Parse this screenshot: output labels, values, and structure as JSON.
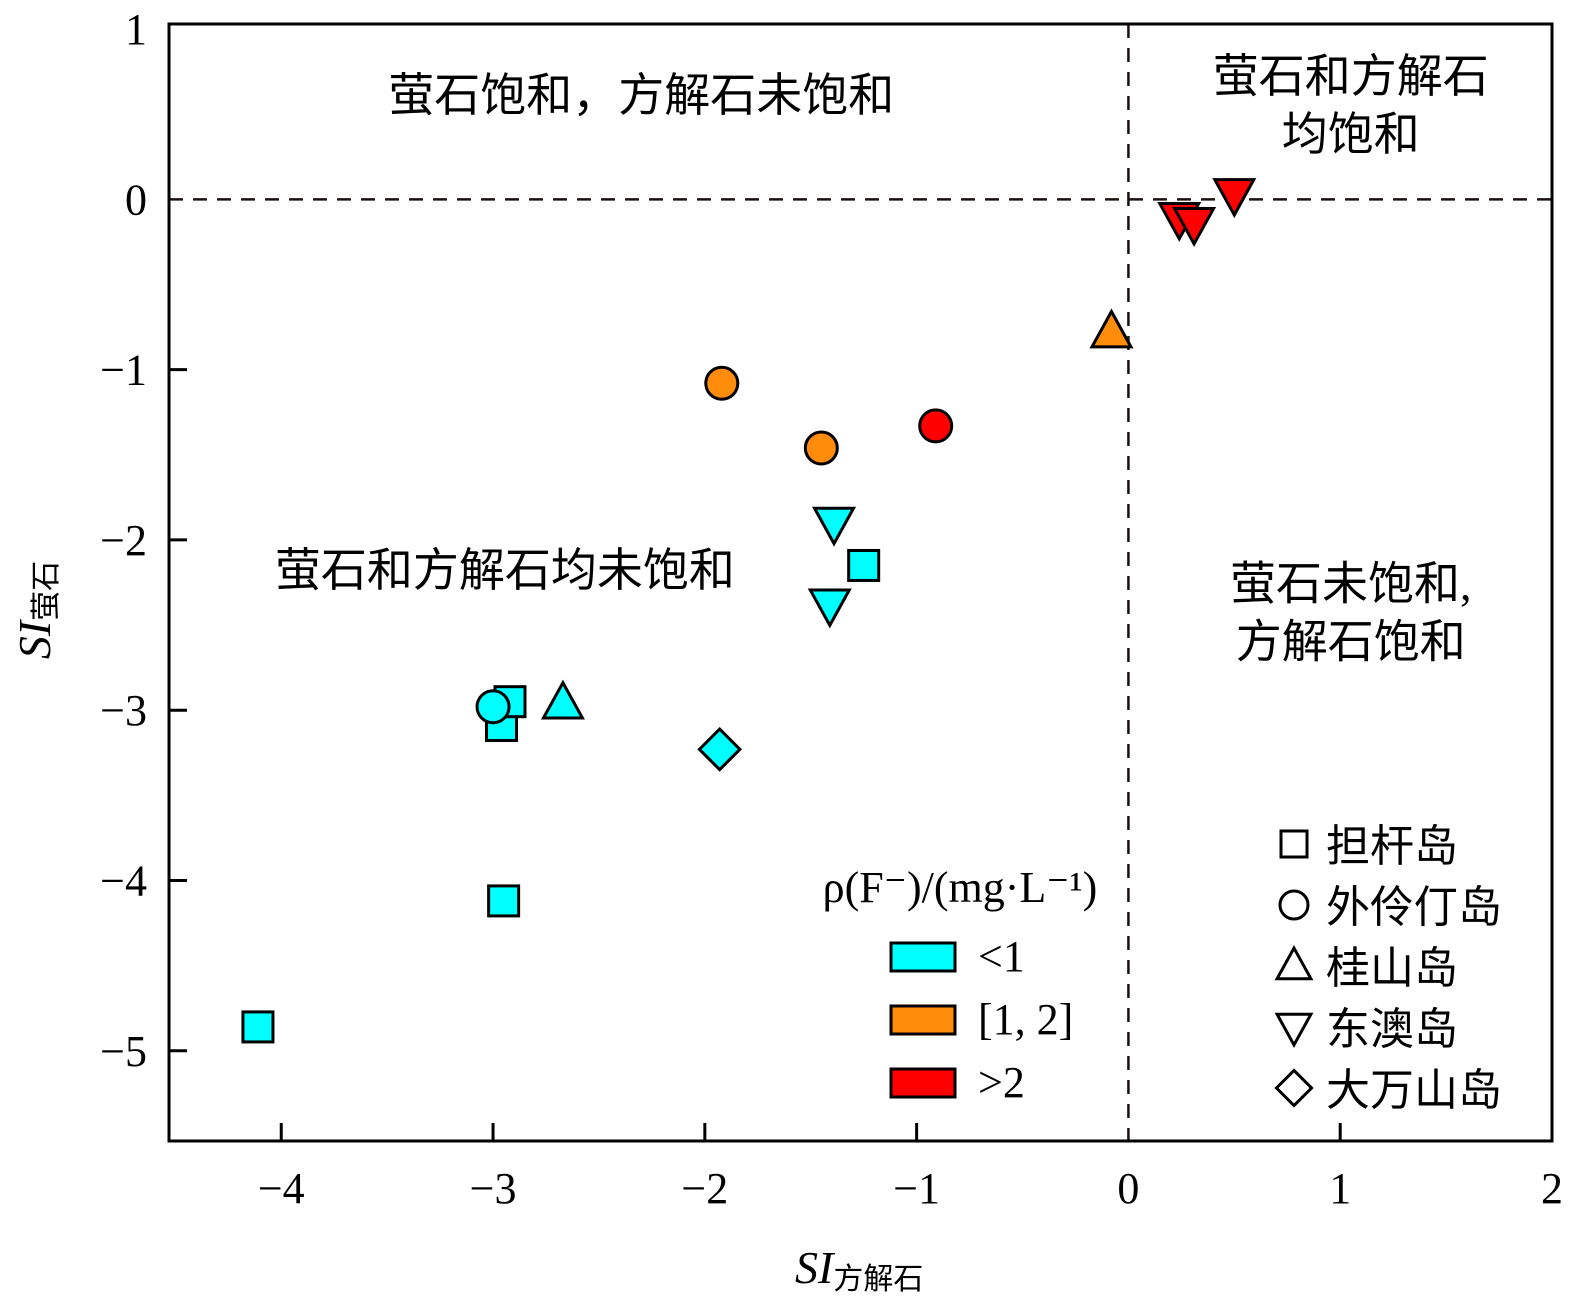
{
  "chart_data": {
    "type": "scatter",
    "title": "",
    "xlabel": {
      "main": "SI",
      "sub": "方解石"
    },
    "ylabel": {
      "main": "SI",
      "sub": "萤石"
    },
    "xlim": [
      -4.53,
      2
    ],
    "ylim": [
      -5.53,
      1.03
    ],
    "xticks": [
      -4,
      -3,
      -2,
      -1,
      0,
      1,
      2
    ],
    "xtick_labels": [
      "−4",
      "−3",
      "−2",
      "−1",
      "0",
      "1",
      "2"
    ],
    "yticks": [
      1,
      0,
      -1,
      -2,
      -3,
      -4,
      -5
    ],
    "ytick_labels": [
      "1",
      "0",
      "−1",
      "−2",
      "−3",
      "−4",
      "−5"
    ],
    "grid": false,
    "reference_lines": [
      {
        "axis": "x",
        "value": 0,
        "style": "dashed"
      },
      {
        "axis": "y",
        "value": 0,
        "style": "dashed"
      }
    ],
    "annotations": [
      {
        "id": "q2",
        "lines": [
          "萤石饱和，方解石未饱和"
        ],
        "x": -2.3,
        "y": 0.52,
        "anchor": "middle"
      },
      {
        "id": "q1",
        "lines": [
          "萤石和方解石",
          "均饱和"
        ],
        "x": 1.05,
        "y": 0.63,
        "anchor": "middle"
      },
      {
        "id": "q3",
        "lines": [
          "萤石和方解石均未饱和"
        ],
        "x": -4.03,
        "y": -2.27,
        "anchor": "start"
      },
      {
        "id": "q4",
        "lines": [
          "萤石未饱和,",
          "方解石饱和"
        ],
        "x": 1.05,
        "y": -2.35,
        "anchor": "middle"
      }
    ],
    "color_legend": {
      "title": "ρ(F⁻)/(mg·L⁻¹)",
      "position": "bottom-center-right",
      "items": [
        {
          "label": "<1",
          "key": "low",
          "color": "#00FFFF"
        },
        {
          "label": "[1, 2]",
          "key": "mid",
          "color": "#FF8C0A"
        },
        {
          "label": ">2",
          "key": "high",
          "color": "#FF0000"
        }
      ]
    },
    "shape_legend": {
      "position": "bottom-right",
      "items": [
        {
          "label": "担杆岛",
          "marker": "square"
        },
        {
          "label": "外伶仃岛",
          "marker": "circle"
        },
        {
          "label": "桂山岛",
          "marker": "triangle-up"
        },
        {
          "label": "东澳岛",
          "marker": "triangle-down"
        },
        {
          "label": "大万山岛",
          "marker": "diamond"
        }
      ]
    },
    "series": [
      {
        "name": "担杆岛",
        "marker": "square",
        "points": [
          {
            "x": -4.11,
            "y": -4.86,
            "f": "low"
          },
          {
            "x": -2.95,
            "y": -4.12,
            "f": "low"
          },
          {
            "x": -2.96,
            "y": -3.09,
            "f": "low"
          },
          {
            "x": -2.92,
            "y": -2.95,
            "f": "low"
          },
          {
            "x": -1.25,
            "y": -2.15,
            "f": "low"
          }
        ]
      },
      {
        "name": "外伶仃岛",
        "marker": "circle",
        "points": [
          {
            "x": -3.0,
            "y": -2.98,
            "f": "low"
          },
          {
            "x": -1.92,
            "y": -1.08,
            "f": "mid"
          },
          {
            "x": -1.45,
            "y": -1.46,
            "f": "mid"
          },
          {
            "x": -0.91,
            "y": -1.33,
            "f": "high"
          }
        ]
      },
      {
        "name": "桂山岛",
        "marker": "triangle-up",
        "points": [
          {
            "x": -2.67,
            "y": -2.96,
            "f": "low"
          },
          {
            "x": -0.08,
            "y": -0.78,
            "f": "mid"
          }
        ]
      },
      {
        "name": "东澳岛",
        "marker": "triangle-down",
        "points": [
          {
            "x": -1.39,
            "y": -1.9,
            "f": "low"
          },
          {
            "x": -1.41,
            "y": -2.38,
            "f": "low"
          },
          {
            "x": 0.24,
            "y": -0.11,
            "f": "high"
          },
          {
            "x": 0.31,
            "y": -0.14,
            "f": "high"
          },
          {
            "x": 0.5,
            "y": 0.03,
            "f": "high"
          }
        ]
      },
      {
        "name": "大万山岛",
        "marker": "diamond",
        "points": [
          {
            "x": -1.93,
            "y": -3.23,
            "f": "low"
          }
        ]
      }
    ]
  }
}
